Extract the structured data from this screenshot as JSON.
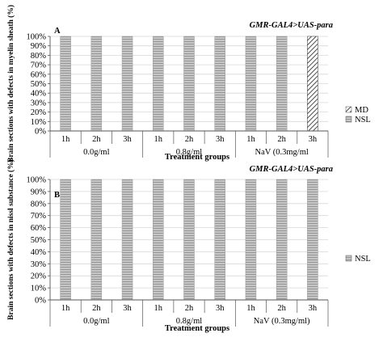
{
  "colors": {
    "nsl": "#b4b4b4",
    "md_stripe": "#222222",
    "axis": "#555555",
    "grid": "#d8d8d8"
  },
  "chart_data": [
    {
      "type": "bar",
      "panel_label": "A",
      "strain": "GMR-GAL4>UAS-para",
      "ylabel": "Brain sections with defects in myelin sheath (%)",
      "xlabel": "Treatment groups",
      "ylim": [
        0,
        100
      ],
      "yticks": [
        "0%",
        "10%",
        "20%",
        "30%",
        "40%",
        "50%",
        "60%",
        "70%",
        "80%",
        "90%",
        "100%"
      ],
      "categories": [
        "1h",
        "2h",
        "3h",
        "1h",
        "2h",
        "3h",
        "1h",
        "2h",
        "3h"
      ],
      "groups": [
        {
          "label": "0.0g/ml",
          "count": 3
        },
        {
          "label": "0.8g/ml",
          "count": 3
        },
        {
          "label": "NaV (0.3mg/ml",
          "count": 3
        }
      ],
      "series": [
        {
          "name": "MD",
          "values": [
            0,
            0,
            0,
            0,
            0,
            0,
            0,
            0,
            100
          ]
        },
        {
          "name": "NSL",
          "values": [
            100,
            100,
            100,
            100,
            100,
            100,
            100,
            100,
            0
          ]
        }
      ],
      "legend": "right",
      "grid": true
    },
    {
      "type": "bar",
      "panel_label": "B",
      "strain": "GMR-GAL4>UAS-para",
      "ylabel": "Brain sections with defects in nissl substance (%)",
      "xlabel": "Treatment groups",
      "ylim": [
        0,
        100
      ],
      "yticks": [
        "0%",
        "10%",
        "20%",
        "30%",
        "40%",
        "50%",
        "60%",
        "70%",
        "80%",
        "90%",
        "100%"
      ],
      "categories": [
        "1h",
        "2h",
        "3h",
        "1h",
        "2h",
        "3h",
        "1h",
        "2h",
        "3h"
      ],
      "groups": [
        {
          "label": "0.0g/ml",
          "count": 3
        },
        {
          "label": "0.8g/ml",
          "count": 3
        },
        {
          "label": "NaV (0.3mg/ml)",
          "count": 3
        }
      ],
      "series": [
        {
          "name": "NSL",
          "values": [
            100,
            100,
            100,
            100,
            100,
            100,
            100,
            100,
            100
          ]
        }
      ],
      "legend": "right",
      "grid": true
    }
  ]
}
